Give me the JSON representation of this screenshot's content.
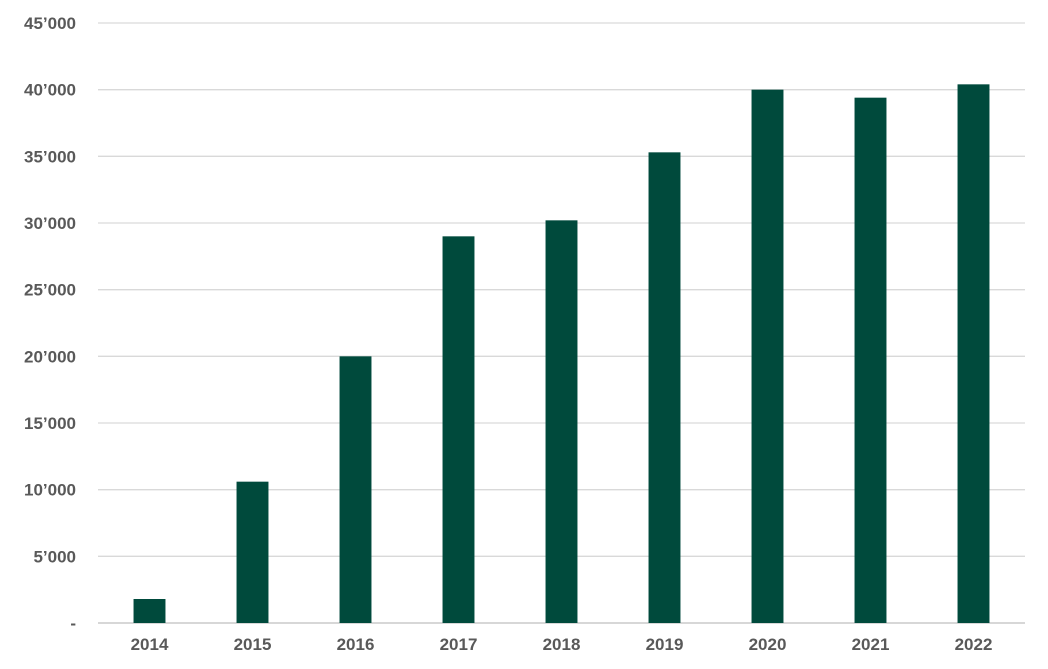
{
  "chart_data": {
    "type": "bar",
    "title": "",
    "xlabel": "",
    "ylabel": "",
    "categories": [
      "2014",
      "2015",
      "2016",
      "2017",
      "2018",
      "2019",
      "2020",
      "2021",
      "2022"
    ],
    "values": [
      1800,
      10600,
      20000,
      29000,
      30200,
      35300,
      40000,
      39400,
      40400
    ],
    "ylim": [
      0,
      45000
    ],
    "y_ticks": [
      0,
      5000,
      10000,
      15000,
      20000,
      25000,
      30000,
      35000,
      40000,
      45000
    ],
    "y_tick_labels": [
      "-",
      "5’000",
      "10’000",
      "15’000",
      "20’000",
      "25’000",
      "30’000",
      "35’000",
      "40’000",
      "45’000"
    ],
    "grid": true,
    "legend": "none",
    "bar_color": "#004a3c",
    "grid_color": "#d9d9d9",
    "label_color": "#595959"
  }
}
